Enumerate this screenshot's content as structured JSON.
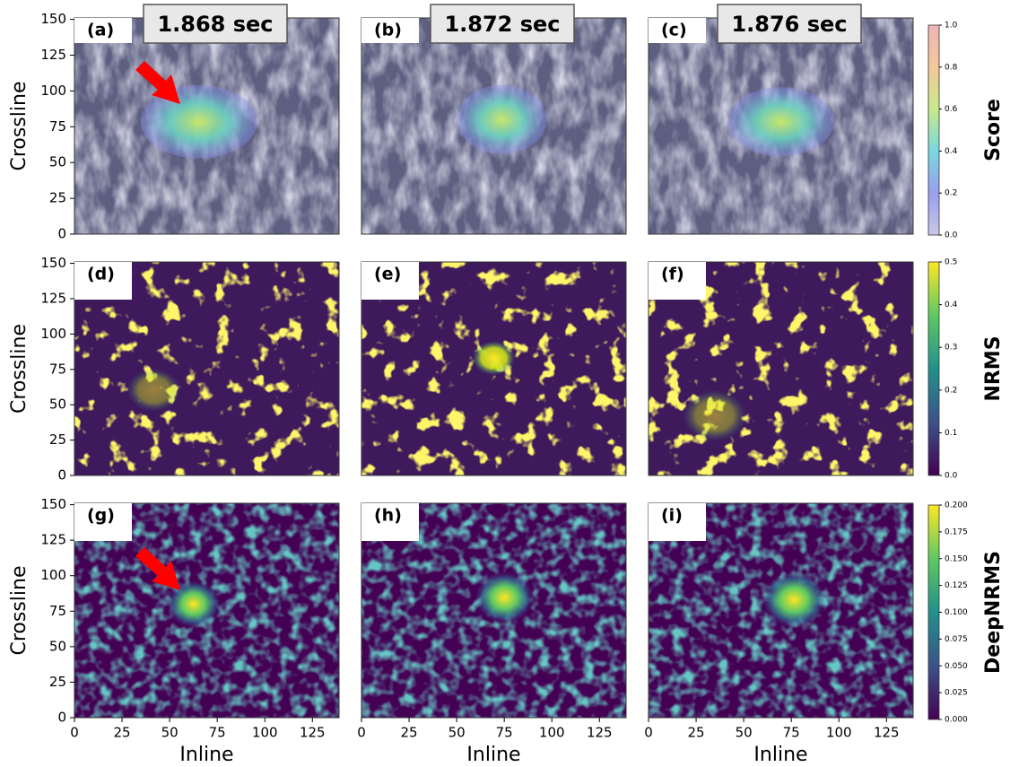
{
  "chart_data": [
    {
      "type": "heatmap",
      "label": "(a)",
      "title": "1.868 sec",
      "ylabel": "Crossline",
      "xlim": [
        0,
        139
      ],
      "ylim": [
        0,
        151
      ],
      "yticks": [
        0,
        25,
        50,
        75,
        100,
        125,
        150
      ]
    },
    {
      "type": "heatmap",
      "label": "(b)",
      "title": "1.872 sec",
      "xlim": [
        0,
        139
      ],
      "ylim": [
        0,
        151
      ]
    },
    {
      "type": "heatmap",
      "label": "(c)",
      "title": "1.876 sec",
      "xlim": [
        0,
        139
      ],
      "ylim": [
        0,
        151
      ],
      "colorbar": {
        "label": "Score",
        "lim": [
          0,
          1
        ],
        "ticks": [
          {
            "value": 0,
            "label": "0.0"
          },
          0.2,
          0.4,
          0.6,
          0.8,
          {
            "value": 1,
            "label": "1.0"
          }
        ]
      }
    },
    {
      "type": "heatmap",
      "label": "(d)",
      "ylabel": "Crossline",
      "xlim": [
        0,
        139
      ],
      "ylim": [
        0,
        151
      ],
      "yticks": [
        0,
        25,
        50,
        75,
        100,
        125,
        150
      ]
    },
    {
      "type": "heatmap",
      "label": "(e)",
      "xlim": [
        0,
        139
      ],
      "ylim": [
        0,
        151
      ]
    },
    {
      "type": "heatmap",
      "label": "(f)",
      "xlim": [
        0,
        139
      ],
      "ylim": [
        0,
        151
      ],
      "colorbar": {
        "label": "NRMS",
        "lim": [
          0,
          0.5
        ],
        "ticks": [
          {
            "value": 0,
            "label": "0.0"
          },
          0.1,
          0.2,
          0.3,
          0.4,
          0.5
        ]
      }
    },
    {
      "type": "heatmap",
      "label": "(g)",
      "ylabel": "Crossline",
      "xlabel": "Inline",
      "xlim": [
        0,
        139
      ],
      "ylim": [
        0,
        151
      ],
      "xticks": [
        0,
        25,
        50,
        75,
        100,
        125
      ],
      "yticks": [
        0,
        25,
        50,
        75,
        100,
        125,
        150
      ]
    },
    {
      "type": "heatmap",
      "label": "(h)",
      "xlabel": "Inline",
      "xlim": [
        0,
        139
      ],
      "ylim": [
        0,
        151
      ],
      "xticks": [
        0,
        25,
        50,
        75,
        100,
        125
      ]
    },
    {
      "type": "heatmap",
      "label": "(i)",
      "xlabel": "Inline",
      "xlim": [
        0,
        139
      ],
      "ylim": [
        0,
        151
      ],
      "xticks": [
        0,
        25,
        50,
        75,
        100,
        125
      ],
      "colorbar": {
        "label": "DeepNRMS",
        "lim": [
          0,
          0.2
        ],
        "ticks": [
          {
            "value": 0,
            "label": "0.000"
          },
          0.025,
          {
            "value": 0.05,
            "label": "0.050"
          },
          0.075,
          {
            "value": 0.1,
            "label": "0.100"
          },
          0.125,
          {
            "value": 0.15,
            "label": "0.150"
          },
          0.175,
          {
            "value": 0.2,
            "label": "0.200"
          }
        ]
      }
    }
  ]
}
